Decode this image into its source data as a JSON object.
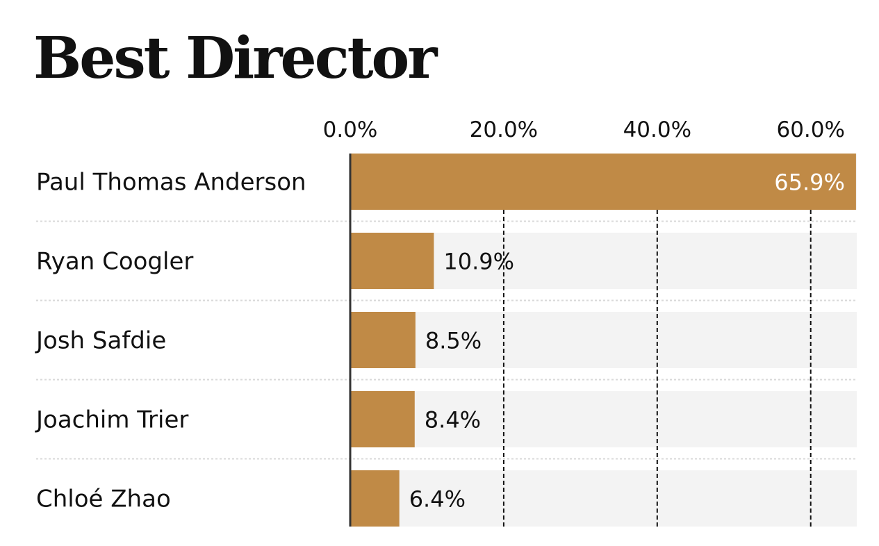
{
  "chart_data": {
    "type": "bar",
    "orientation": "horizontal",
    "title": "Best Director",
    "xlabel": "",
    "ylabel": "",
    "categories": [
      "Paul Thomas Anderson",
      "Ryan Coogler",
      "Josh Safdie",
      "Joachim Trier",
      "Chloé Zhao"
    ],
    "values": [
      65.9,
      10.9,
      8.5,
      8.4,
      6.4
    ],
    "value_labels": [
      "65.9%",
      "10.9%",
      "8.5%",
      "8.4%",
      "6.4%"
    ],
    "xlim": [
      0,
      66
    ],
    "xticks": [
      0,
      20,
      40,
      60
    ],
    "xtick_labels": [
      "0.0%",
      "20.0%",
      "40.0%",
      "60.0%"
    ],
    "x_axis_position": "top",
    "grid": true,
    "grid_style": "dashed-vertical",
    "legend": "none",
    "colors": {
      "bar": "#C08A46",
      "track": "#F3F3F3",
      "gridline": "#111111",
      "separator": "#D9D9D9",
      "text": "#111111",
      "inside_label": "#FFFFFF"
    }
  }
}
